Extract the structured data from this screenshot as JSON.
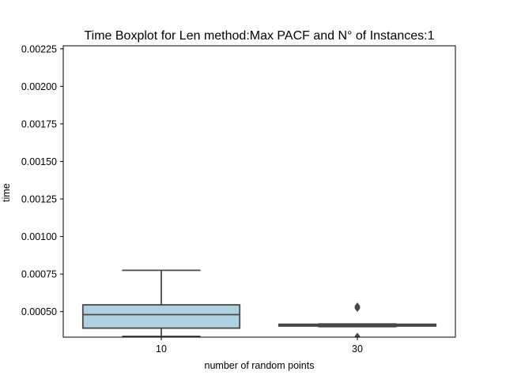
{
  "chart_data": {
    "type": "box",
    "title": "Time Boxplot for Len method:Max PACF and N° of Instances:1",
    "xlabel": "number of random points",
    "ylabel": "time",
    "categories": [
      "10",
      "30"
    ],
    "ylim": [
      0.00033,
      0.00227
    ],
    "yticks": [
      "0.00050",
      "0.00075",
      "0.00100",
      "0.00125",
      "0.00150",
      "0.00175",
      "0.00200",
      "0.00225"
    ],
    "boxes": [
      {
        "category": "10",
        "whisker_low": 0.000335,
        "q1": 0.00039,
        "median": 0.00048,
        "q3": 0.000545,
        "whisker_high": 0.000775,
        "fliers": [],
        "color": "#b0d1e1"
      },
      {
        "category": "30",
        "whisker_low": 0.0004,
        "q1": 0.000404,
        "median": 0.000408,
        "q3": 0.000416,
        "whisker_high": 0.000418,
        "fliers": [
          0.000522,
          0.000527,
          0.000532,
          0.000537,
          0.000335
        ],
        "color": "#b0d1e1"
      }
    ],
    "grid": false
  }
}
